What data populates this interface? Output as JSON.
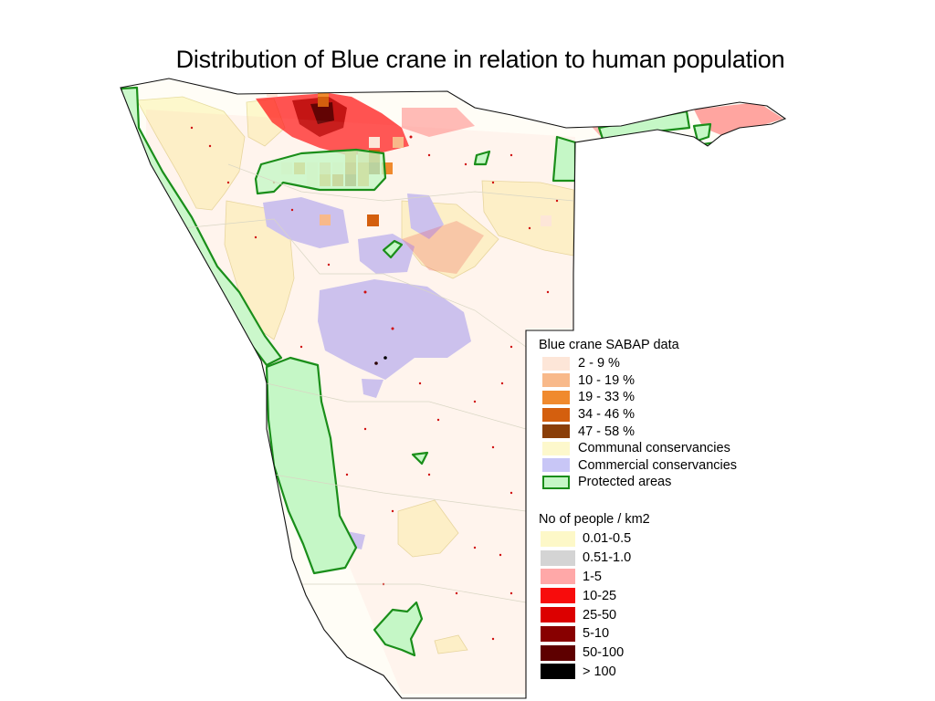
{
  "title": "Distribution of Blue crane in relation to human population",
  "legend_sabap": {
    "heading": "Blue crane SABAP data",
    "items": [
      {
        "label": "2 - 9 %",
        "color": "#fde6d8"
      },
      {
        "label": "10 - 19 %",
        "color": "#f8b98a"
      },
      {
        "label": "19 - 33 %",
        "color": "#f08a2e"
      },
      {
        "label": "34 - 46 %",
        "color": "#d45f0e"
      },
      {
        "label": "47 - 58 %",
        "color": "#8a3e08"
      },
      {
        "label": "Communal conservancies",
        "color": "#fdf8cc"
      },
      {
        "label": "Commercial conservancies",
        "color": "#c8c6f6"
      },
      {
        "label": "Protected areas",
        "color": "#c5f7c6",
        "outline": "#1a8e1a"
      }
    ]
  },
  "legend_population": {
    "heading": "No of people / km2",
    "items": [
      {
        "label": "0.01-0.5",
        "color": "#fdf8c8"
      },
      {
        "label": "0.51-1.0",
        "color": "#d4d4d4"
      },
      {
        "label": "1-5",
        "color": "#ffa8a8"
      },
      {
        "label": "10-25",
        "color": "#f80c0c"
      },
      {
        "label": "25-50",
        "color": "#dc0000"
      },
      {
        "label": "5-10",
        "color": "#880000"
      },
      {
        "label": "50-100",
        "color": "#5e0000"
      },
      {
        "label": "> 100",
        "color": "#000000"
      }
    ]
  }
}
